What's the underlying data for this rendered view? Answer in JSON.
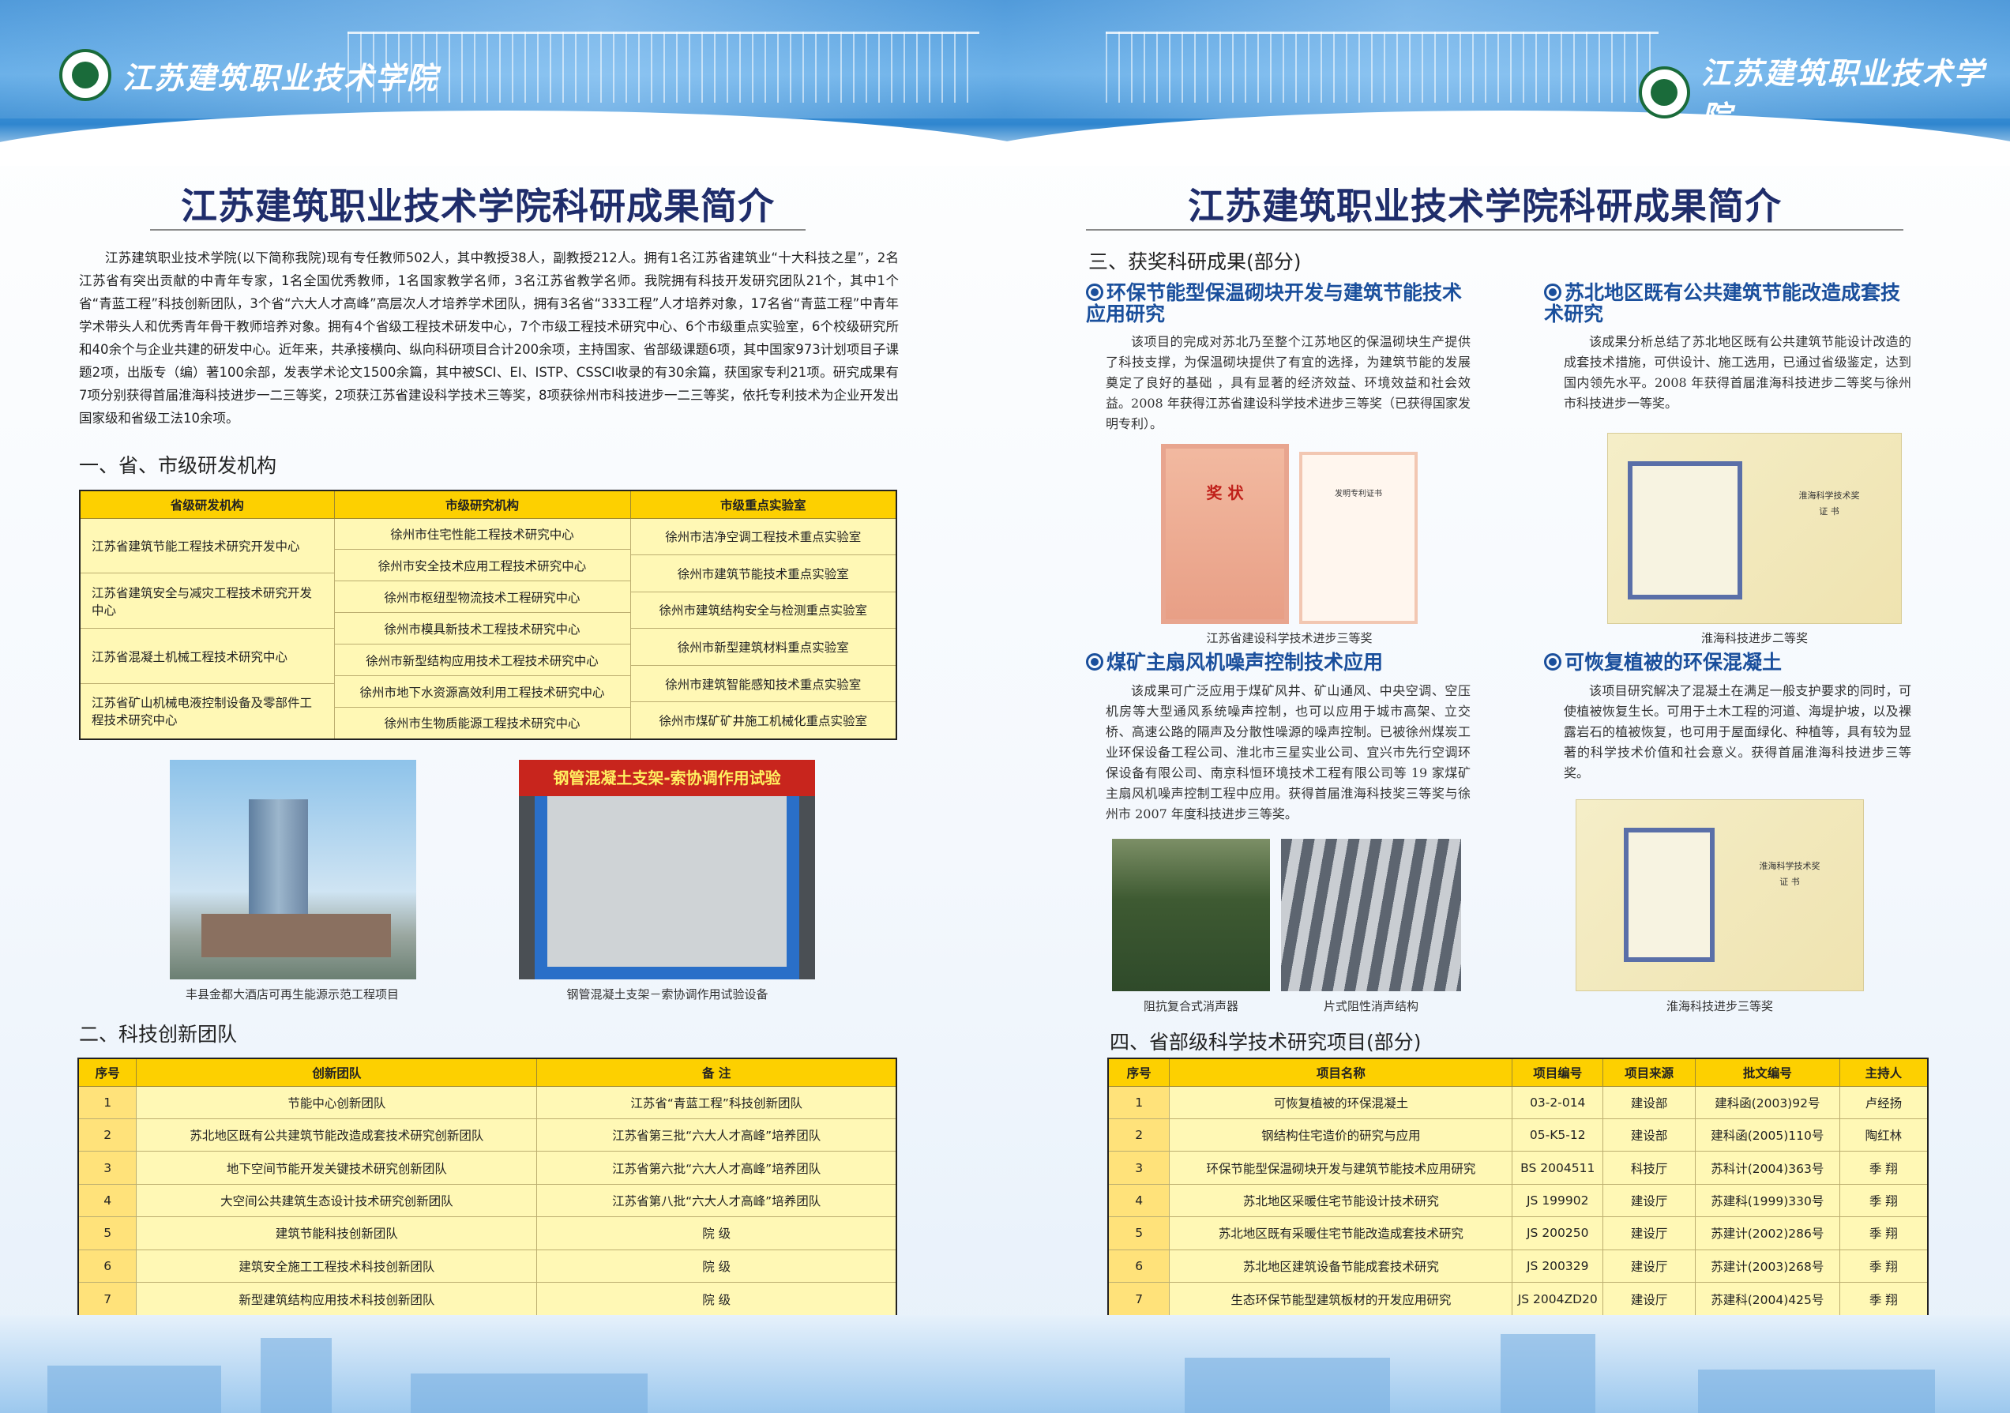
{
  "brand": {
    "name": "江苏建筑职业技术学院",
    "logo_icon": "school-seal-icon"
  },
  "colors": {
    "header_blue": "#3d8fd6",
    "title": "#1f2d6b",
    "subheading_blue": "#1a4f9c",
    "table_header": "#fdd000",
    "table_cell": "#fff8b5"
  },
  "left": {
    "title": "江苏建筑职业技术学院科研成果简介",
    "intro": "江苏建筑职业技术学院(以下简称我院)现有专任教师502人，其中教授38人，副教授212人。拥有1名江苏省建筑业“十大科技之星”，2名江苏省有突出贡献的中青年专家，1名全国优秀教师，1名国家教学名师，3名江苏省教学名师。我院拥有科技开发研究团队21个，其中1个省“青蓝工程”科技创新团队，3个省“六大人才高峰”高层次人才培养学术团队，拥有3名省“333工程”人才培养对象，17名省“青蓝工程”中青年学术带头人和优秀青年骨干教师培养对象。拥有4个省级工程技术研发中心，7个市级工程技术研究中心、6个市级重点实验室，6个校级研究所和40余个与企业共建的研发中心。近年来，共承接横向、纵向科研项目合计200余项，主持国家、省部级课题6项，其中国家973计划项目子课题2项，出版专（编）著100余部，发表学术论文1500余篇，其中被SCI、EI、ISTP、CSSCI收录的有30余篇，获国家专利21项。研究成果有7项分别获得首届淮海科技进步一二三等奖，2项获江苏省建设科学技术三等奖，8项获徐州市科技进步一二三等奖，依托专利技术为企业开发出国家级和省级工法10余项。",
    "section1": {
      "heading": "一、省、市级研发机构",
      "headers": [
        "省级研发机构",
        "市级研究机构",
        "市级重点实验室"
      ],
      "provincial": [
        "江苏省建筑节能工程技术研究开发中心",
        "江苏省建筑安全与减灾工程技术研究开发中心",
        "江苏省混凝土机械工程技术研究中心",
        "江苏省矿山机械电液控制设备及零部件工程技术研究中心"
      ],
      "municipal": [
        "徐州市住宅性能工程技术研究中心",
        "徐州市安全技术应用工程技术研究中心",
        "徐州市枢纽型物流技术工程研究中心",
        "徐州市模具新技术工程技术研究中心",
        "徐州市新型结构应用技术工程技术研究中心",
        "徐州市地下水资源高效利用工程技术研究中心",
        "徐州市生物质能源工程技术研究中心"
      ],
      "labs": [
        "徐州市洁净空调工程技术重点实验室",
        "徐州市建筑节能技术重点实验室",
        "徐州市建筑结构安全与检测重点实验室",
        "徐州市新型建筑材料重点实验室",
        "徐州市建筑智能感知技术重点实验室",
        "徐州市煤矿矿井施工机械化重点实验室"
      ]
    },
    "photos": [
      {
        "caption": "丰县金都大酒店可再生能源示范工程项目"
      },
      {
        "caption": "钢管混凝土支架－索协调作用试验设备",
        "banner": "钢管混凝土支架-索协调作用试验"
      }
    ],
    "section2": {
      "heading": "二、科技创新团队",
      "headers": [
        "序号",
        "创新团队",
        "备 注"
      ],
      "rows": [
        [
          "1",
          "节能中心创新团队",
          "江苏省“青蓝工程”科技创新团队"
        ],
        [
          "2",
          "苏北地区既有公共建筑节能改造成套技术研究创新团队",
          "江苏省第三批“六大人才高峰”培养团队"
        ],
        [
          "3",
          "地下空间节能开发关键技术研究创新团队",
          "江苏省第六批“六大人才高峰”培养团队"
        ],
        [
          "4",
          "大空间公共建筑生态设计技术研究创新团队",
          "江苏省第八批“六大人才高峰”培养团队"
        ],
        [
          "5",
          "建筑节能科技创新团队",
          "院 级"
        ],
        [
          "6",
          "建筑安全施工工程技术科技创新团队",
          "院 级"
        ],
        [
          "7",
          "新型建筑结构应用技术科技创新团队",
          "院 级"
        ]
      ]
    }
  },
  "right": {
    "title": "江苏建筑职业技术学院科研成果简介",
    "section3": {
      "heading": "三、获奖科研成果(部分)",
      "items": [
        {
          "title": "环保节能型保温砌块开发与建筑节能技术应用研究",
          "body": "该项目的完成对苏北乃至整个江苏地区的保温砌块生产提供了科技支撑，为保温砌块提供了有宜的选择，为建筑节能的发展奠定了良好的基础 ，具有显著的经济效益、环境效益和社会效益。2008 年获得江苏省建设科学技术进步三等奖（已获得国家发明专利）。",
          "captions": [
            "江苏省建设科学技术进步三等奖"
          ],
          "cert1_title": "奖 状",
          "cert2_title": "发明专利证书"
        },
        {
          "title": "苏北地区既有公共建筑节能改造成套技术研究",
          "body": "该成果分析总结了苏北地区既有公共建筑节能设计改造的成套技术措施，可供设计、施工选用，已通过省级鉴定，达到国内领先水平。2008 年获得首届淮海科技进步二等奖与徐州市科技进步一等奖。",
          "captions": [
            "淮海科技进步二等奖"
          ],
          "cert_title": "淮海科学技术奖",
          "cert_sub": "证 书"
        },
        {
          "title": "煤矿主扇风机噪声控制技术应用",
          "body": "该成果可广泛应用于煤矿风井、矿山通风、中央空调、空压机房等大型通风系统噪声控制，也可以应用于城市高架、立交桥、高速公路的隔声及分散性噪源的噪声控制。已被徐州煤炭工业环保设备工程公司、淮北市三星实业公司、宜兴市先行空调环保设备有限公司、南京科恒环境技术工程有限公司等 19 家煤矿主扇风机噪声控制工程中应用。获得首届淮海科技奖三等奖与徐州市 2007 年度科技进步三等奖。",
          "captions": [
            "阻抗复合式消声器",
            "片式阻性消声结构"
          ]
        },
        {
          "title": "可恢复植被的环保混凝土",
          "body": "该项目研究解决了混凝土在满足一般支护要求的同时，可使植被恢复生长。可用于土木工程的河道、海堤护坡，以及裸露岩石的植被恢复，也可用于屋面绿化、种植等，具有较为显著的科学技术价值和社会意义。获得首届淮海科技进步三等奖。",
          "captions": [
            "淮海科技进步三等奖"
          ],
          "cert_title": "淮海科学技术奖",
          "cert_sub": "证 书"
        }
      ]
    },
    "section4": {
      "heading": "四、省部级科学技术研究项目(部分)",
      "headers": [
        "序号",
        "项目名称",
        "项目编号",
        "项目来源",
        "批文编号",
        "主持人"
      ],
      "rows": [
        [
          "1",
          "可恢复植被的环保混凝土",
          "03-2-014",
          "建设部",
          "建科函(2003)92号",
          "卢经扬"
        ],
        [
          "2",
          "钢结构住宅造价的研究与应用",
          "05-K5-12",
          "建设部",
          "建科函(2005)110号",
          "陶红林"
        ],
        [
          "3",
          "环保节能型保温砌块开发与建筑节能技术应用研究",
          "BS 2004511",
          "科技厅",
          "苏科计(2004)363号",
          "季 翔"
        ],
        [
          "4",
          "苏北地区采暖住宅节能设计技术研究",
          "JS 199902",
          "建设厅",
          "苏建科(1999)330号",
          "季 翔"
        ],
        [
          "5",
          "苏北地区既有采暖住宅节能改造成套技术研究",
          "JS 200250",
          "建设厅",
          "苏建计(2002)286号",
          "季 翔"
        ],
        [
          "6",
          "苏北地区建筑设备节能成套技术研究",
          "JS 200329",
          "建设厅",
          "苏建计(2003)268号",
          "季 翔"
        ],
        [
          "7",
          "生态环保节能型建筑板材的开发应用研究",
          "JS 2004ZD20",
          "建设厅",
          "苏建科(2004)425号",
          "季 翔"
        ]
      ]
    }
  }
}
